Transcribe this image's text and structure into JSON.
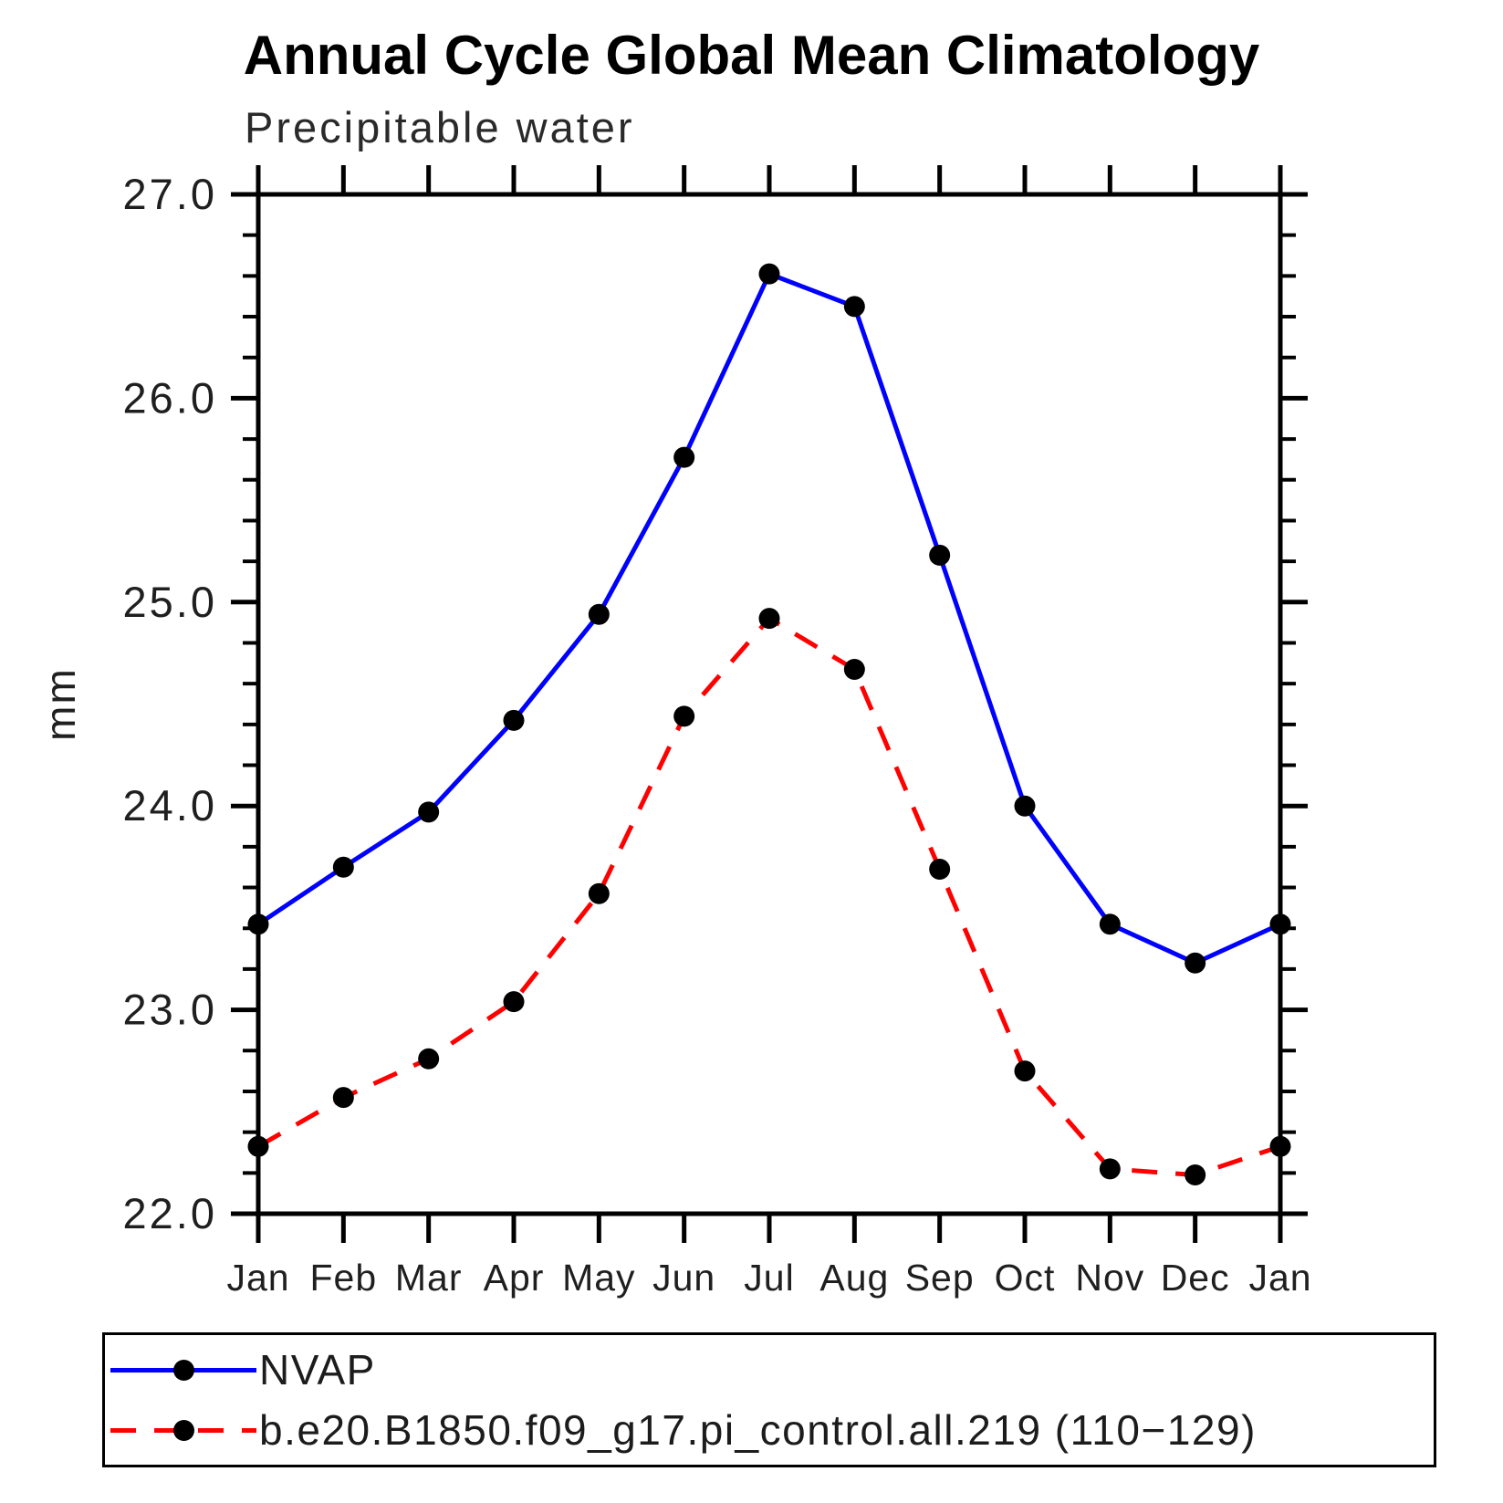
{
  "chart_data": {
    "type": "line",
    "title": "Annual Cycle Global Mean Climatology",
    "subtitle": "Precipitable water",
    "ylabel": "mm",
    "xlabel": "",
    "x_tick_labels": [
      "Jan",
      "Feb",
      "Mar",
      "Apr",
      "May",
      "Jun",
      "Jul",
      "Aug",
      "Sep",
      "Oct",
      "Nov",
      "Dec",
      "Jan"
    ],
    "y_ticks": [
      27.0,
      26.0,
      25.0,
      24.0,
      23.0,
      22.0
    ],
    "y_tick_labels": [
      "27.0",
      "26.0",
      "25.0",
      "24.0",
      "23.0",
      "22.0"
    ],
    "ylim": [
      22.0,
      27.0
    ],
    "y_minor_step": 0.2,
    "grid": false,
    "legend_position": "bottom",
    "series": [
      {
        "name": "NVAP",
        "color": "#0000ff",
        "style": "solid",
        "marker": "circle",
        "marker_color": "#000000",
        "values": [
          23.42,
          23.7,
          23.97,
          24.42,
          24.94,
          25.71,
          26.61,
          26.45,
          25.23,
          24.0,
          23.42,
          23.23,
          23.42
        ]
      },
      {
        "name": "b.e20.B1850.f09_g17.pi_control.all.219 (110−129)",
        "color": "#ff0000",
        "style": "dashed",
        "marker": "circle",
        "marker_color": "#000000",
        "values": [
          22.33,
          22.57,
          22.76,
          23.04,
          23.57,
          24.44,
          24.92,
          24.67,
          23.69,
          22.7,
          22.22,
          22.19,
          22.33
        ]
      }
    ]
  }
}
